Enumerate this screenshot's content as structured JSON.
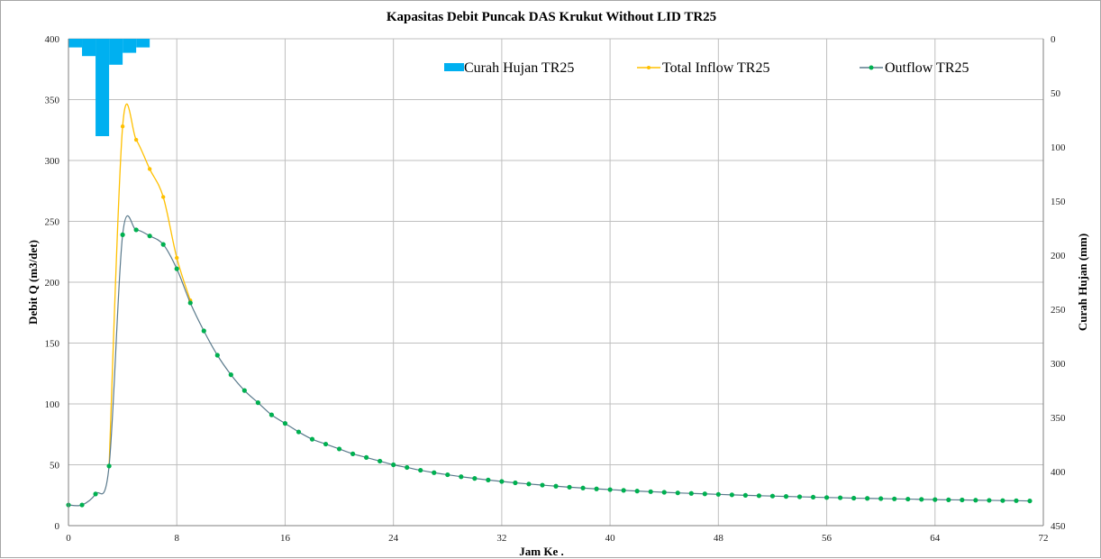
{
  "chart_data": {
    "type": "line",
    "title": "Kapasitas Debit Puncak DAS Krukut Without LID TR25",
    "xlabel": "Jam Ke .",
    "ylabel": "Debit Q (m3/det)",
    "y2label": "Curah Hujan (mm)",
    "xlim": [
      0,
      72
    ],
    "ylim": [
      0,
      400
    ],
    "y2lim": [
      0,
      450
    ],
    "y2_reversed": true,
    "x_ticks": [
      0,
      8,
      16,
      24,
      32,
      40,
      48,
      56,
      64,
      72
    ],
    "y_ticks": [
      0,
      50,
      100,
      150,
      200,
      250,
      300,
      350,
      400
    ],
    "y2_ticks": [
      0,
      50,
      100,
      150,
      200,
      250,
      300,
      350,
      400,
      450
    ],
    "grid": true,
    "legend_position": "top-right",
    "colors": {
      "rain": "#00b0f0",
      "inflow": "#ffc000",
      "outflow": "#00b050",
      "line": "#5a7a8c"
    },
    "rainfall": {
      "name": "Curah Hujan TR25",
      "x": [
        1,
        2,
        3,
        4,
        5,
        6,
        7
      ],
      "values": [
        8,
        16,
        90,
        24,
        13,
        8,
        0
      ]
    },
    "inflow": {
      "name": "Total Inflow TR25",
      "x": [
        3,
        4,
        5,
        6,
        7,
        8,
        9
      ],
      "values": [
        49,
        328,
        317,
        293,
        270,
        220,
        185
      ]
    },
    "outflow": {
      "name": "Outflow TR25",
      "x": [
        0,
        1,
        2,
        3,
        4,
        5,
        6,
        7,
        8,
        9,
        10,
        11,
        12,
        13,
        14,
        15,
        16,
        17,
        18,
        19,
        20,
        21,
        22,
        23,
        24,
        25,
        26,
        27,
        28,
        29,
        30,
        31,
        32,
        33,
        34,
        35,
        36,
        37,
        38,
        39,
        40,
        41,
        42,
        43,
        44,
        45,
        46,
        47,
        48,
        49,
        50,
        51,
        52,
        53,
        54,
        55,
        56,
        57,
        58,
        59,
        60,
        61,
        62,
        63,
        64,
        65,
        66,
        67,
        68,
        69,
        70,
        71
      ],
      "values": [
        17,
        17,
        26,
        49,
        239,
        243,
        238,
        231,
        211,
        183,
        160,
        140,
        124,
        111,
        101,
        91,
        84,
        77,
        71,
        67,
        63,
        59,
        56,
        53,
        50,
        47.8,
        45.5,
        43.5,
        41.8,
        40.2,
        38.8,
        37.5,
        36.3,
        35.2,
        34.2,
        33.3,
        32.4,
        31.6,
        30.9,
        30.2,
        29.6,
        29,
        28.4,
        27.9,
        27.4,
        26.9,
        26.5,
        26.1,
        25.7,
        25.3,
        24.9,
        24.6,
        24.3,
        24,
        23.7,
        23.4,
        23.1,
        22.9,
        22.6,
        22.4,
        22.2,
        22,
        21.8,
        21.6,
        21.4,
        21.2,
        21.1,
        20.9,
        20.8,
        20.6,
        20.5,
        20.3
      ]
    }
  }
}
